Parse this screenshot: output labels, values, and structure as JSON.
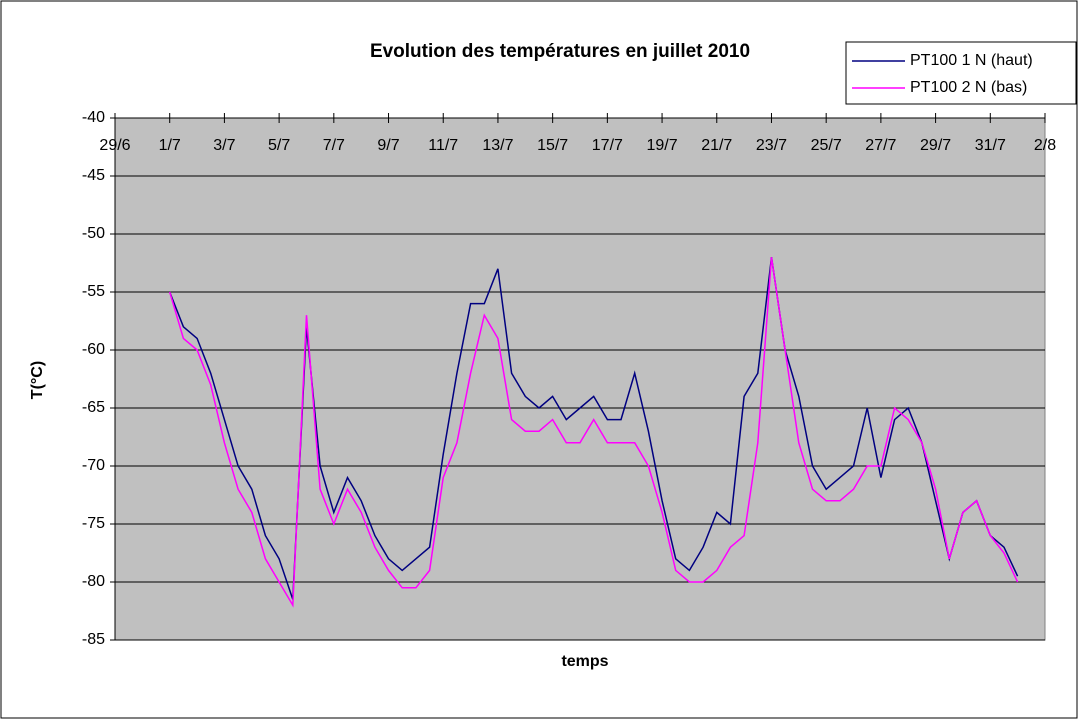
{
  "chart_data": {
    "type": "line",
    "title": "Evolution des températures en juillet 2010",
    "x_label": "temps",
    "y_label": "T(°C)",
    "x": [
      182,
      182.5,
      183,
      183.5,
      184,
      184.5,
      185,
      185.5,
      186,
      186.5,
      187,
      187.5,
      188,
      188.5,
      189,
      189.5,
      190,
      190.5,
      191,
      191.5,
      192,
      192.5,
      193,
      193.5,
      194,
      194.5,
      195,
      195.5,
      196,
      196.5,
      197,
      197.5,
      198,
      198.5,
      199,
      199.5,
      200,
      200.5,
      201,
      201.5,
      202,
      202.5,
      203,
      203.5,
      204,
      204.5,
      205,
      205.5,
      206,
      206.5,
      207,
      207.5,
      208,
      208.5,
      209,
      209.5,
      210,
      210.5,
      211,
      211.5,
      212,
      212.5,
      213
    ],
    "series": [
      {
        "name": "PT100 1 N (haut)",
        "color": "#000080",
        "values": [
          -55,
          -58,
          -59,
          -62,
          -66,
          -70,
          -72,
          -76,
          -78,
          -81.5,
          -58,
          -70,
          -74,
          -71,
          -73,
          -76,
          -78,
          -79,
          -78,
          -77,
          -69,
          -62,
          -56,
          -56,
          -53,
          -62,
          -64,
          -65,
          -64,
          -66,
          -65,
          -64,
          -66,
          -66,
          -62,
          -67,
          -73,
          -78,
          -79,
          -77,
          -74,
          -75,
          -64,
          -62,
          -52,
          -60,
          -64,
          -70,
          -72,
          -71,
          -70,
          -65,
          -71,
          -66,
          -65,
          -68,
          -73,
          -78,
          -74,
          -73,
          -76,
          -77,
          -79.5
        ]
      },
      {
        "name": "PT100 2 N (bas)",
        "color": "#ff00ff",
        "values": [
          -55,
          -59,
          -60,
          -63,
          -68,
          -72,
          -74,
          -78,
          -80,
          -82,
          -57,
          -72,
          -75,
          -72,
          -74,
          -77,
          -79,
          -80.5,
          -80.5,
          -79,
          -71,
          -68,
          -62,
          -57,
          -59,
          -66,
          -67,
          -67,
          -66,
          -68,
          -68,
          -66,
          -68,
          -68,
          -68,
          -70,
          -74,
          -79,
          -80,
          -80,
          -79,
          -77,
          -76,
          -68,
          -52,
          -60,
          -68,
          -72,
          -73,
          -73,
          -72,
          -70,
          -70,
          -65,
          -66,
          -68,
          -72,
          -78,
          -74,
          -73,
          -76,
          -77.5,
          -80
        ]
      }
    ],
    "xlim": [
      180,
      214
    ],
    "xticks": [
      {
        "value": 180,
        "label": "29/6"
      },
      {
        "value": 182,
        "label": "1/7"
      },
      {
        "value": 184,
        "label": "3/7"
      },
      {
        "value": 186,
        "label": "5/7"
      },
      {
        "value": 188,
        "label": "7/7"
      },
      {
        "value": 190,
        "label": "9/7"
      },
      {
        "value": 192,
        "label": "11/7"
      },
      {
        "value": 194,
        "label": "13/7"
      },
      {
        "value": 196,
        "label": "15/7"
      },
      {
        "value": 198,
        "label": "17/7"
      },
      {
        "value": 200,
        "label": "19/7"
      },
      {
        "value": 202,
        "label": "21/7"
      },
      {
        "value": 204,
        "label": "23/7"
      },
      {
        "value": 206,
        "label": "25/7"
      },
      {
        "value": 208,
        "label": "27/7"
      },
      {
        "value": 210,
        "label": "29/7"
      },
      {
        "value": 212,
        "label": "31/7"
      },
      {
        "value": 214,
        "label": "2/8"
      }
    ],
    "ylim": [
      -85,
      -40
    ],
    "yticks": [
      -40,
      -45,
      -50,
      -55,
      -60,
      -65,
      -70,
      -75,
      -80,
      -85
    ],
    "grid": true,
    "legend": "top-right"
  }
}
